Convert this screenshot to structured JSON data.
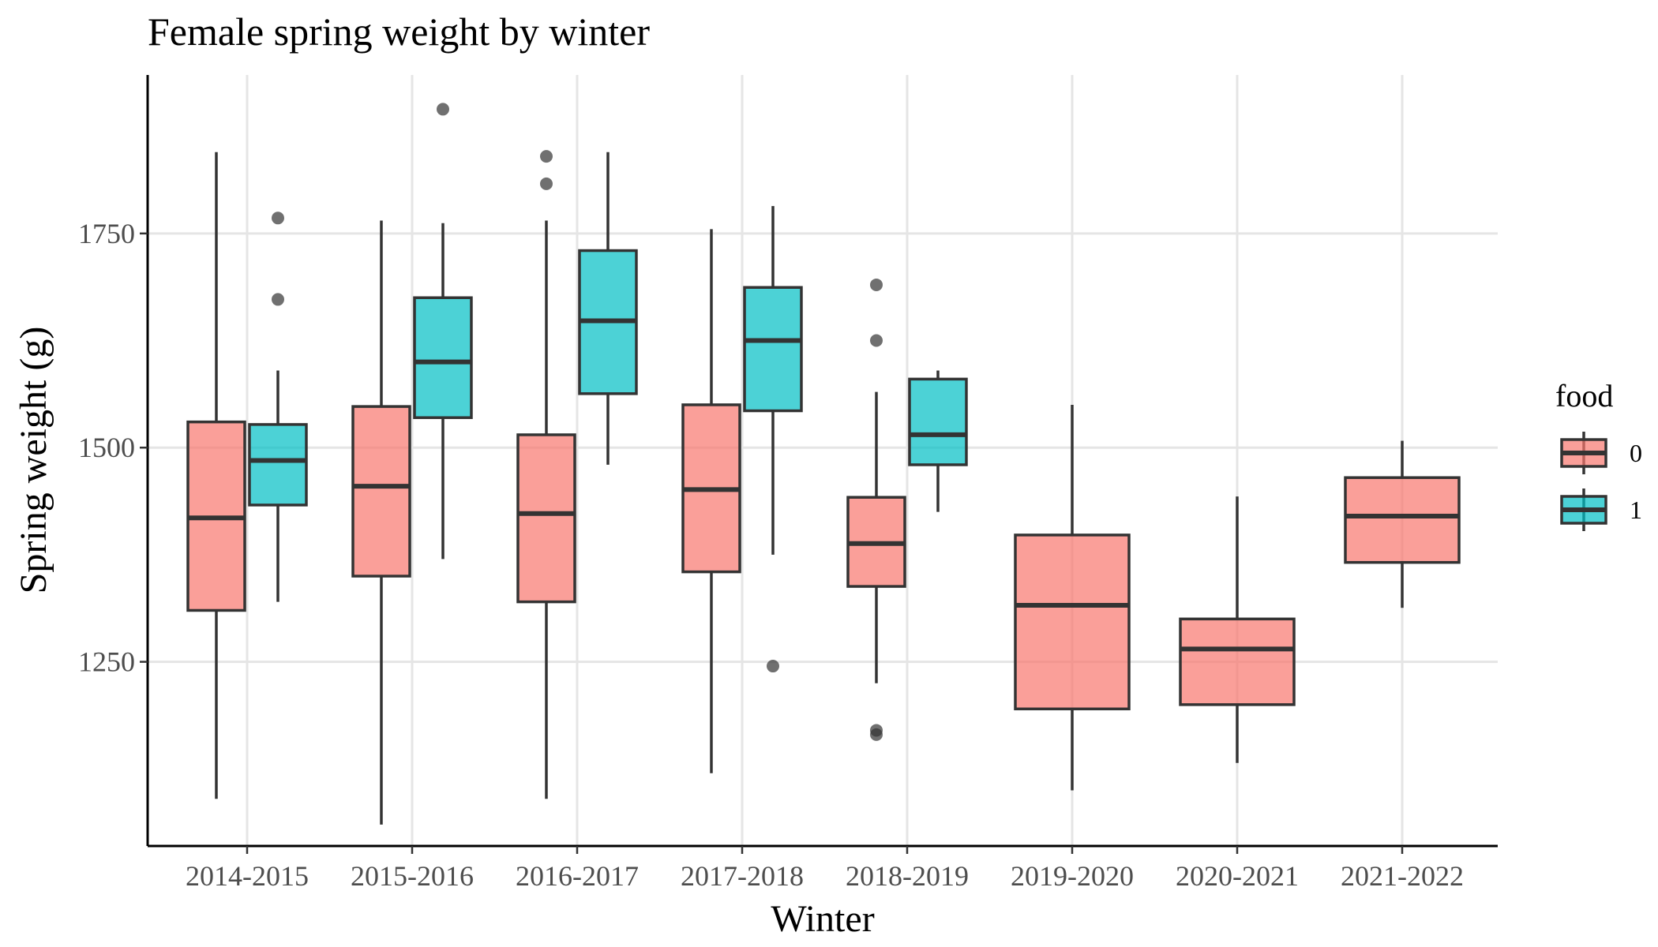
{
  "chart_data": {
    "type": "boxplot",
    "title": "Female spring weight by winter",
    "xlabel": "Winter",
    "ylabel": "Spring weight (g)",
    "categories": [
      "2014-2015",
      "2015-2016",
      "2016-2017",
      "2017-2018",
      "2018-2019",
      "2019-2020",
      "2020-2021",
      "2021-2022"
    ],
    "y_ticks": [
      1250,
      1500,
      1750
    ],
    "ylim": [
      1035,
      1935
    ],
    "grid": true,
    "legend": {
      "title": "food",
      "position": "right",
      "entries": [
        {
          "label": "0",
          "color": "#F8766D"
        },
        {
          "label": "1",
          "color": "#00BFC4"
        }
      ]
    },
    "series": [
      {
        "name": "0",
        "color": "#F8766D",
        "boxes": [
          {
            "category": "2014-2015",
            "min": 1090,
            "q1": 1310,
            "median": 1418,
            "q3": 1530,
            "max": 1845,
            "outliers": []
          },
          {
            "category": "2015-2016",
            "min": 1060,
            "q1": 1350,
            "median": 1455,
            "q3": 1548,
            "max": 1765,
            "outliers": []
          },
          {
            "category": "2016-2017",
            "min": 1090,
            "q1": 1320,
            "median": 1423,
            "q3": 1515,
            "max": 1765,
            "outliers": [
              1808,
              1840
            ]
          },
          {
            "category": "2017-2018",
            "min": 1120,
            "q1": 1355,
            "median": 1451,
            "q3": 1550,
            "max": 1755,
            "outliers": []
          },
          {
            "category": "2018-2019",
            "min": 1225,
            "q1": 1338,
            "median": 1388,
            "q3": 1442,
            "max": 1565,
            "outliers": [
              1165,
              1170,
              1625,
              1690
            ]
          },
          {
            "category": "2019-2020",
            "min": 1100,
            "q1": 1195,
            "median": 1316,
            "q3": 1398,
            "max": 1550,
            "outliers": []
          },
          {
            "category": "2020-2021",
            "min": 1132,
            "q1": 1200,
            "median": 1265,
            "q3": 1300,
            "max": 1443,
            "outliers": []
          },
          {
            "category": "2021-2022",
            "min": 1313,
            "q1": 1366,
            "median": 1420,
            "q3": 1465,
            "max": 1508,
            "outliers": []
          }
        ]
      },
      {
        "name": "1",
        "color": "#00BFC4",
        "boxes": [
          {
            "category": "2014-2015",
            "min": 1320,
            "q1": 1433,
            "median": 1485,
            "q3": 1527,
            "max": 1590,
            "outliers": [
              1673,
              1768
            ]
          },
          {
            "category": "2015-2016",
            "min": 1370,
            "q1": 1535,
            "median": 1600,
            "q3": 1675,
            "max": 1762,
            "outliers": [
              1895
            ]
          },
          {
            "category": "2016-2017",
            "min": 1480,
            "q1": 1563,
            "median": 1648,
            "q3": 1730,
            "max": 1845,
            "outliers": []
          },
          {
            "category": "2017-2018",
            "min": 1375,
            "q1": 1543,
            "median": 1625,
            "q3": 1687,
            "max": 1782,
            "outliers": [
              1245
            ]
          },
          {
            "category": "2018-2019",
            "min": 1425,
            "q1": 1480,
            "median": 1515,
            "q3": 1580,
            "max": 1590,
            "outliers": []
          }
        ]
      }
    ]
  }
}
